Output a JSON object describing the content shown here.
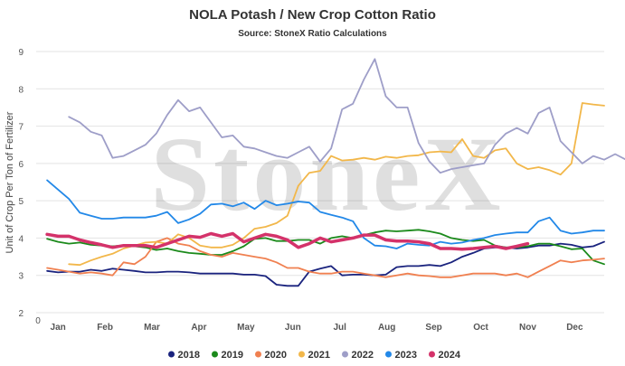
{
  "chart_data": {
    "type": "line",
    "title": "NOLA Potash / New Crop Cotton Ratio",
    "subtitle": "Source: StoneX Ratio Calculations",
    "watermark": "StoneX",
    "ylabel": "Unit of Crop Per Ton of Fertilizer",
    "xlabel": "",
    "ylim": [
      2,
      9
    ],
    "yticks": [
      2,
      3,
      4,
      5,
      6,
      7,
      8,
      9
    ],
    "xlim": [
      0,
      52
    ],
    "xticks": [
      {
        "label": "0",
        "x": 0
      },
      {
        "label": "Jan",
        "x": 2
      },
      {
        "label": "Feb",
        "x": 6.3
      },
      {
        "label": "Mar",
        "x": 10.6
      },
      {
        "label": "Apr",
        "x": 14.9
      },
      {
        "label": "May",
        "x": 19.2
      },
      {
        "label": "Jun",
        "x": 23.5
      },
      {
        "label": "Jul",
        "x": 27.8
      },
      {
        "label": "Aug",
        "x": 32.1
      },
      {
        "label": "Sep",
        "x": 36.4
      },
      {
        "label": "Oct",
        "x": 40.7
      },
      {
        "label": "Nov",
        "x": 45.0
      },
      {
        "label": "Dec",
        "x": 49.3
      }
    ],
    "grid": {
      "horizontal": true,
      "vertical": false
    },
    "legend_position": "bottom",
    "series": [
      {
        "name": "2018",
        "color": "#1a237e",
        "width": 1.8,
        "x_start": 1,
        "values": [
          3.12,
          3.08,
          3.1,
          3.1,
          3.15,
          3.12,
          3.18,
          3.15,
          3.12,
          3.08,
          3.08,
          3.1,
          3.1,
          3.08,
          3.05,
          3.05,
          3.05,
          3.05,
          3.02,
          3.02,
          2.98,
          2.75,
          2.72,
          2.72,
          3.1,
          3.18,
          3.25,
          3.0,
          3.02,
          3.02,
          3.0,
          3.02,
          3.22,
          3.25,
          3.25,
          3.28,
          3.25,
          3.35,
          3.5,
          3.6,
          3.72,
          3.75,
          3.75,
          3.72,
          3.75,
          3.8,
          3.8,
          3.85,
          3.82,
          3.75,
          3.78,
          3.9
        ]
      },
      {
        "name": "2019",
        "color": "#1b8a1b",
        "width": 1.8,
        "x_start": 1,
        "values": [
          3.98,
          3.9,
          3.85,
          3.88,
          3.82,
          3.8,
          3.78,
          3.8,
          3.78,
          3.75,
          3.68,
          3.72,
          3.65,
          3.6,
          3.58,
          3.55,
          3.55,
          3.65,
          3.78,
          3.98,
          4.0,
          3.92,
          3.92,
          3.95,
          3.95,
          3.85,
          4.0,
          4.05,
          4.0,
          4.08,
          4.15,
          4.2,
          4.18,
          4.2,
          4.22,
          4.18,
          4.12,
          4.0,
          3.95,
          3.92,
          3.95,
          3.8,
          3.75,
          3.75,
          3.78,
          3.85,
          3.85,
          3.78,
          3.7,
          3.72,
          3.4,
          3.3
        ]
      },
      {
        "name": "2020",
        "color": "#f08050",
        "width": 1.8,
        "x_start": 1,
        "values": [
          3.2,
          3.15,
          3.1,
          3.05,
          3.08,
          3.05,
          3.0,
          3.35,
          3.3,
          3.5,
          3.9,
          4.0,
          3.85,
          3.8,
          3.65,
          3.55,
          3.5,
          3.6,
          3.55,
          3.5,
          3.45,
          3.35,
          3.2,
          3.2,
          3.1,
          3.05,
          3.05,
          3.1,
          3.1,
          3.05,
          3.0,
          2.95,
          3.0,
          3.05,
          3.0,
          2.98,
          2.95,
          2.95,
          3.0,
          3.05,
          3.05,
          3.05,
          3.0,
          3.05,
          2.95,
          3.1,
          3.25,
          3.4,
          3.35,
          3.4,
          3.42,
          3.45
        ]
      },
      {
        "name": "2021",
        "color": "#f2b74a",
        "width": 1.8,
        "x_start": 3,
        "values": [
          3.3,
          3.28,
          3.4,
          3.5,
          3.58,
          3.72,
          3.8,
          3.88,
          3.9,
          3.85,
          4.1,
          4.0,
          3.8,
          3.75,
          3.75,
          3.82,
          4.0,
          4.25,
          4.3,
          4.4,
          4.6,
          5.4,
          5.75,
          5.8,
          6.2,
          6.08,
          6.1,
          6.15,
          6.1,
          6.18,
          6.15,
          6.2,
          6.22,
          6.3,
          6.32,
          6.3,
          6.65,
          6.2,
          6.15,
          6.35,
          6.4,
          6.0,
          5.85,
          5.9,
          5.82,
          5.7,
          6.0,
          7.62,
          7.58,
          7.55
        ]
      },
      {
        "name": "2022",
        "color": "#9e9ec8",
        "width": 1.8,
        "x_start": 3,
        "values": [
          7.25,
          7.1,
          6.85,
          6.75,
          6.15,
          6.2,
          6.35,
          6.5,
          6.8,
          7.3,
          7.7,
          7.4,
          7.5,
          7.1,
          6.7,
          6.75,
          6.45,
          6.4,
          6.3,
          6.2,
          6.15,
          6.3,
          6.45,
          6.05,
          6.4,
          7.45,
          7.6,
          8.25,
          8.8,
          7.8,
          7.5,
          7.5,
          6.55,
          6.05,
          5.75,
          5.85,
          5.9,
          5.95,
          6.0,
          6.5,
          6.8,
          6.95,
          6.8,
          7.35,
          7.5,
          6.6,
          6.3,
          6.0,
          6.2,
          6.1,
          6.25,
          6.1,
          5.75
        ]
      },
      {
        "name": "2023",
        "color": "#2288e8",
        "width": 1.8,
        "x_start": 1,
        "values": [
          5.55,
          5.3,
          5.05,
          4.68,
          4.6,
          4.52,
          4.52,
          4.55,
          4.55,
          4.55,
          4.6,
          4.7,
          4.4,
          4.5,
          4.65,
          4.9,
          4.92,
          4.85,
          4.95,
          4.78,
          5.0,
          4.88,
          4.92,
          4.98,
          4.95,
          4.7,
          4.62,
          4.55,
          4.45,
          4.0,
          3.8,
          3.78,
          3.72,
          3.85,
          3.82,
          3.8,
          3.9,
          3.85,
          3.88,
          3.95,
          4.0,
          4.08,
          4.12,
          4.15,
          4.15,
          4.45,
          4.55,
          4.2,
          4.12,
          4.15,
          4.2,
          4.2
        ]
      },
      {
        "name": "2024",
        "color": "#d4326a",
        "width": 3.5,
        "x_start": 1,
        "values": [
          4.1,
          4.05,
          4.05,
          3.95,
          3.88,
          3.82,
          3.75,
          3.8,
          3.8,
          3.8,
          3.75,
          3.85,
          3.95,
          4.05,
          4.02,
          4.12,
          4.05,
          4.12,
          3.9,
          4.0,
          4.1,
          4.05,
          3.95,
          3.75,
          3.85,
          4.0,
          3.9,
          3.95,
          4.0,
          4.08,
          4.08,
          3.95,
          3.92,
          3.92,
          3.9,
          3.85,
          3.72,
          3.72,
          3.7,
          3.72,
          3.75,
          3.78,
          3.72,
          3.78,
          3.85
        ]
      }
    ]
  }
}
